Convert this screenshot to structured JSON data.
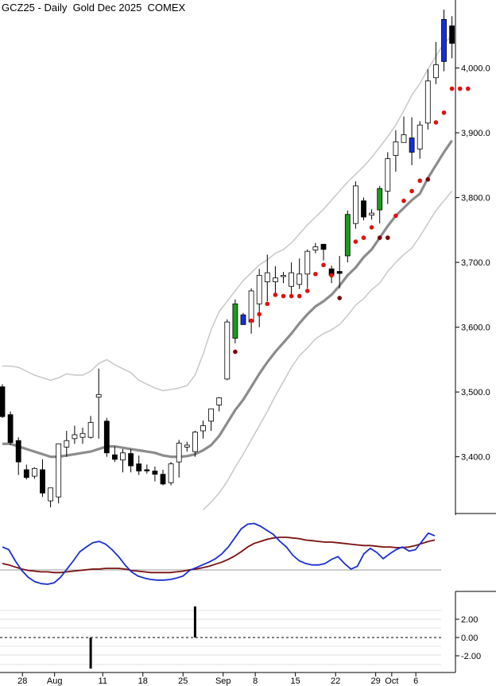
{
  "chart_data": {
    "type": "candlestick",
    "title": "GCZ25 - Daily  Gold Dec 2025  COMEX",
    "price_axis": {
      "range": [
        3310,
        4100
      ],
      "ticks": [
        3400,
        3500,
        3600,
        3700,
        3800,
        3900,
        4000
      ],
      "tick_labels": [
        "3,400.0",
        "3,500.0",
        "3,600.0",
        "3,700.0",
        "3,800.0",
        "3,900.0",
        "4,000.0"
      ]
    },
    "x_labels": [
      "28",
      "Aug",
      "11",
      "18",
      "25",
      "Sep",
      "8",
      "15",
      "22",
      "29",
      "Oct",
      "6"
    ],
    "x_label_index": [
      2.5,
      6.5,
      12.5,
      17.5,
      22.5,
      27.5,
      31.5,
      36.5,
      41.5,
      46.5,
      48.5,
      51.5
    ],
    "candles": [
      {
        "o": 3508,
        "h": 3512,
        "l": 3460,
        "c": 3462
      },
      {
        "o": 3465,
        "h": 3470,
        "l": 3418,
        "c": 3422
      },
      {
        "o": 3425,
        "h": 3430,
        "l": 3372,
        "c": 3392
      },
      {
        "o": 3380,
        "h": 3388,
        "l": 3365,
        "c": 3368
      },
      {
        "o": 3370,
        "h": 3384,
        "l": 3366,
        "c": 3382
      },
      {
        "o": 3380,
        "h": 3396,
        "l": 3338,
        "c": 3344
      },
      {
        "o": 3332,
        "h": 3352,
        "l": 3322,
        "c": 3352
      },
      {
        "o": 3338,
        "h": 3420,
        "l": 3328,
        "c": 3420
      },
      {
        "o": 3415,
        "h": 3440,
        "l": 3400,
        "c": 3425
      },
      {
        "o": 3428,
        "h": 3448,
        "l": 3420,
        "c": 3434
      },
      {
        "o": 3430,
        "h": 3445,
        "l": 3420,
        "c": 3436
      },
      {
        "o": 3430,
        "h": 3463,
        "l": 3428,
        "c": 3453
      },
      {
        "o": 3492,
        "h": 3536,
        "l": 3428,
        "c": 3496
      },
      {
        "o": 3455,
        "h": 3460,
        "l": 3400,
        "c": 3406
      },
      {
        "o": 3403,
        "h": 3416,
        "l": 3392,
        "c": 3396
      },
      {
        "o": 3395,
        "h": 3412,
        "l": 3376,
        "c": 3406
      },
      {
        "o": 3405,
        "h": 3412,
        "l": 3376,
        "c": 3386
      },
      {
        "o": 3389,
        "h": 3402,
        "l": 3372,
        "c": 3378
      },
      {
        "o": 3380,
        "h": 3388,
        "l": 3374,
        "c": 3379
      },
      {
        "o": 3378,
        "h": 3385,
        "l": 3362,
        "c": 3373
      },
      {
        "o": 3373,
        "h": 3380,
        "l": 3356,
        "c": 3358
      },
      {
        "o": 3360,
        "h": 3392,
        "l": 3356,
        "c": 3389
      },
      {
        "o": 3392,
        "h": 3426,
        "l": 3368,
        "c": 3421
      },
      {
        "o": 3415,
        "h": 3423,
        "l": 3408,
        "c": 3418
      },
      {
        "o": 3408,
        "h": 3440,
        "l": 3400,
        "c": 3438
      },
      {
        "o": 3440,
        "h": 3456,
        "l": 3428,
        "c": 3448
      },
      {
        "o": 3455,
        "h": 3474,
        "l": 3440,
        "c": 3474
      },
      {
        "o": 3480,
        "h": 3492,
        "l": 3470,
        "c": 3491
      },
      {
        "o": 3520,
        "h": 3612,
        "l": 3518,
        "c": 3608
      },
      {
        "o": 3583,
        "h": 3643,
        "l": 3575,
        "c": 3636
      },
      {
        "o": 3619,
        "h": 3622,
        "l": 3606,
        "c": 3604
      },
      {
        "o": 3608,
        "h": 3660,
        "l": 3590,
        "c": 3656
      },
      {
        "o": 3636,
        "h": 3690,
        "l": 3600,
        "c": 3680
      },
      {
        "o": 3670,
        "h": 3712,
        "l": 3640,
        "c": 3684
      },
      {
        "o": 3670,
        "h": 3694,
        "l": 3652,
        "c": 3676
      },
      {
        "o": 3678,
        "h": 3685,
        "l": 3668,
        "c": 3680
      },
      {
        "o": 3663,
        "h": 3700,
        "l": 3648,
        "c": 3684
      },
      {
        "o": 3666,
        "h": 3706,
        "l": 3659,
        "c": 3682
      },
      {
        "o": 3682,
        "h": 3720,
        "l": 3660,
        "c": 3717
      },
      {
        "o": 3719,
        "h": 3730,
        "l": 3714,
        "c": 3724
      },
      {
        "o": 3728,
        "h": 3728,
        "l": 3703,
        "c": 3720
      },
      {
        "o": 3690,
        "h": 3695,
        "l": 3668,
        "c": 3680
      },
      {
        "o": 3686,
        "h": 3710,
        "l": 3660,
        "c": 3683
      },
      {
        "o": 3710,
        "h": 3780,
        "l": 3700,
        "c": 3774
      },
      {
        "o": 3760,
        "h": 3825,
        "l": 3752,
        "c": 3818
      },
      {
        "o": 3795,
        "h": 3800,
        "l": 3765,
        "c": 3770
      },
      {
        "o": 3773,
        "h": 3782,
        "l": 3766,
        "c": 3776
      },
      {
        "o": 3781,
        "h": 3818,
        "l": 3760,
        "c": 3814
      },
      {
        "o": 3810,
        "h": 3870,
        "l": 3790,
        "c": 3860
      },
      {
        "o": 3865,
        "h": 3904,
        "l": 3840,
        "c": 3886
      },
      {
        "o": 3885,
        "h": 3925,
        "l": 3885,
        "c": 3897
      },
      {
        "o": 3892,
        "h": 3924,
        "l": 3850,
        "c": 3870
      },
      {
        "o": 3875,
        "h": 3918,
        "l": 3860,
        "c": 3912
      },
      {
        "o": 3915,
        "h": 3998,
        "l": 3905,
        "c": 3980
      },
      {
        "o": 3985,
        "h": 4040,
        "l": 3975,
        "c": 4005
      },
      {
        "o": 4010,
        "h": 4090,
        "l": 3995,
        "c": 4075
      },
      {
        "o": 4065,
        "h": 4080,
        "l": 4015,
        "c": 4038
      }
    ],
    "candle_colors": {
      "up": "#ffffff",
      "down": "#000000",
      "highlight_up": "#1a9c1a",
      "highlight_down": "#1530d9"
    },
    "highlight_up_index": [
      29,
      43,
      47
    ],
    "highlight_down_index": [
      30,
      51,
      55
    ],
    "moving_average": {
      "color": "#8c8c8c",
      "values": [
        3420,
        3420,
        3416,
        3412,
        3408,
        3404,
        3400,
        3400,
        3402,
        3404,
        3406,
        3408,
        3412,
        3416,
        3416,
        3414,
        3412,
        3410,
        3408,
        3406,
        3402,
        3400,
        3400,
        3401,
        3404,
        3410,
        3418,
        3432,
        3452,
        3472,
        3488,
        3508,
        3528,
        3546,
        3562,
        3576,
        3590,
        3606,
        3620,
        3632,
        3640,
        3650,
        3664,
        3680,
        3692,
        3708,
        3720,
        3738,
        3756,
        3772,
        3784,
        3796,
        3806,
        3830,
        3850,
        3870,
        3888
      ]
    },
    "band_upper": {
      "color": "#c8c8c8",
      "values": [
        3540,
        3540,
        3538,
        3532,
        3526,
        3522,
        3518,
        3522,
        3528,
        3526,
        3526,
        3532,
        3544,
        3550,
        3542,
        3536,
        3530,
        3518,
        3512,
        3506,
        3502,
        3504,
        3506,
        3510,
        3526,
        3558,
        3596,
        3624,
        3640,
        3656,
        3672,
        3684,
        3696,
        3704,
        3714,
        3720,
        3730,
        3744,
        3758,
        3770,
        3782,
        3796,
        3810,
        3824,
        3836,
        3848,
        3862,
        3878,
        3894,
        3912,
        3934,
        3958,
        3976,
        3998,
        4018,
        4038,
        4050
      ]
    },
    "band_lower": {
      "color": "#c8c8c8",
      "values": [
        null,
        null,
        null,
        null,
        null,
        null,
        null,
        null,
        null,
        null,
        null,
        null,
        null,
        null,
        null,
        null,
        null,
        null,
        null,
        null,
        null,
        null,
        null,
        null,
        null,
        3318,
        3330,
        3344,
        3362,
        3384,
        3404,
        3426,
        3448,
        3470,
        3494,
        3516,
        3538,
        3556,
        3568,
        3582,
        3590,
        3596,
        3604,
        3618,
        3634,
        3644,
        3658,
        3668,
        3686,
        3700,
        3712,
        3722,
        3740,
        3760,
        3780,
        3795,
        3810
      ]
    },
    "stop_dots": {
      "color": "#e01010",
      "dark_color": "#7a0000",
      "points": [
        {
          "i": 29,
          "v": 3562,
          "dark": true
        },
        {
          "i": 31,
          "v": 3610,
          "dark": false
        },
        {
          "i": 32,
          "v": 3620,
          "dark": false
        },
        {
          "i": 33,
          "v": 3636,
          "dark": false
        },
        {
          "i": 34,
          "v": 3650,
          "dark": false
        },
        {
          "i": 35,
          "v": 3648,
          "dark": false
        },
        {
          "i": 36,
          "v": 3648,
          "dark": false
        },
        {
          "i": 37,
          "v": 3648,
          "dark": false
        },
        {
          "i": 38,
          "v": 3656,
          "dark": false
        },
        {
          "i": 39,
          "v": 3682,
          "dark": false
        },
        {
          "i": 40,
          "v": 3696,
          "dark": false
        },
        {
          "i": 41,
          "v": 3680,
          "dark": false
        },
        {
          "i": 42,
          "v": 3645,
          "dark": true
        },
        {
          "i": 44,
          "v": 3732,
          "dark": false
        },
        {
          "i": 45,
          "v": 3738,
          "dark": false
        },
        {
          "i": 46,
          "v": 3754,
          "dark": false
        },
        {
          "i": 47,
          "v": 3738,
          "dark": true
        },
        {
          "i": 48,
          "v": 3738,
          "dark": true
        },
        {
          "i": 49,
          "v": 3772,
          "dark": false
        },
        {
          "i": 50,
          "v": 3795,
          "dark": false
        },
        {
          "i": 51,
          "v": 3810,
          "dark": false
        },
        {
          "i": 52,
          "v": 3826,
          "dark": false
        },
        {
          "i": 53,
          "v": 3828,
          "dark": true
        },
        {
          "i": 54,
          "v": 3916,
          "dark": false
        },
        {
          "i": 55,
          "v": 3931,
          "dark": false
        },
        {
          "i": 56,
          "v": 3968,
          "dark": false
        },
        {
          "i": 57,
          "v": 3968,
          "dark": false
        },
        {
          "i": 58,
          "v": 3968,
          "dark": false
        }
      ]
    },
    "oscillator": {
      "fast_color": "#1a2fd0",
      "slow_color": "#7a1010",
      "fast": [
        62,
        58,
        42,
        28,
        18,
        12,
        9,
        8,
        10,
        18,
        30,
        42,
        55,
        62,
        68,
        70,
        66,
        58,
        48,
        36,
        26,
        20,
        17,
        15,
        14,
        14,
        15,
        17,
        20,
        28,
        32,
        36,
        40,
        45,
        52,
        62,
        75,
        88,
        95,
        96,
        92,
        86,
        80,
        70,
        62,
        50,
        42,
        38,
        36,
        36,
        38,
        44,
        48,
        38,
        30,
        34,
        52,
        60,
        54,
        45,
        52,
        58,
        62,
        56,
        58,
        70,
        82,
        78
      ],
      "slow": [
        38,
        36,
        33,
        30,
        28,
        27,
        26,
        26,
        25,
        25,
        26,
        27,
        28,
        29,
        30,
        30,
        31,
        31,
        31,
        30,
        28,
        27,
        26,
        25,
        25,
        25,
        25,
        26,
        27,
        29,
        30,
        32,
        34,
        37,
        40,
        44,
        49,
        55,
        62,
        67,
        70,
        73,
        75,
        76,
        76,
        75,
        74,
        72,
        71,
        70,
        69,
        69,
        68,
        67,
        66,
        65,
        64,
        64,
        63,
        62,
        62,
        61,
        61,
        62,
        64,
        67,
        70,
        72
      ]
    },
    "histogram": {
      "ticks": [
        2.0,
        0.0,
        -2.0
      ],
      "tick_labels": [
        "2.00",
        "0.00",
        "-2.00"
      ],
      "bars": [
        {
          "i": 11,
          "v": -3.4
        },
        {
          "i": 24,
          "v": 3.4
        }
      ]
    }
  }
}
